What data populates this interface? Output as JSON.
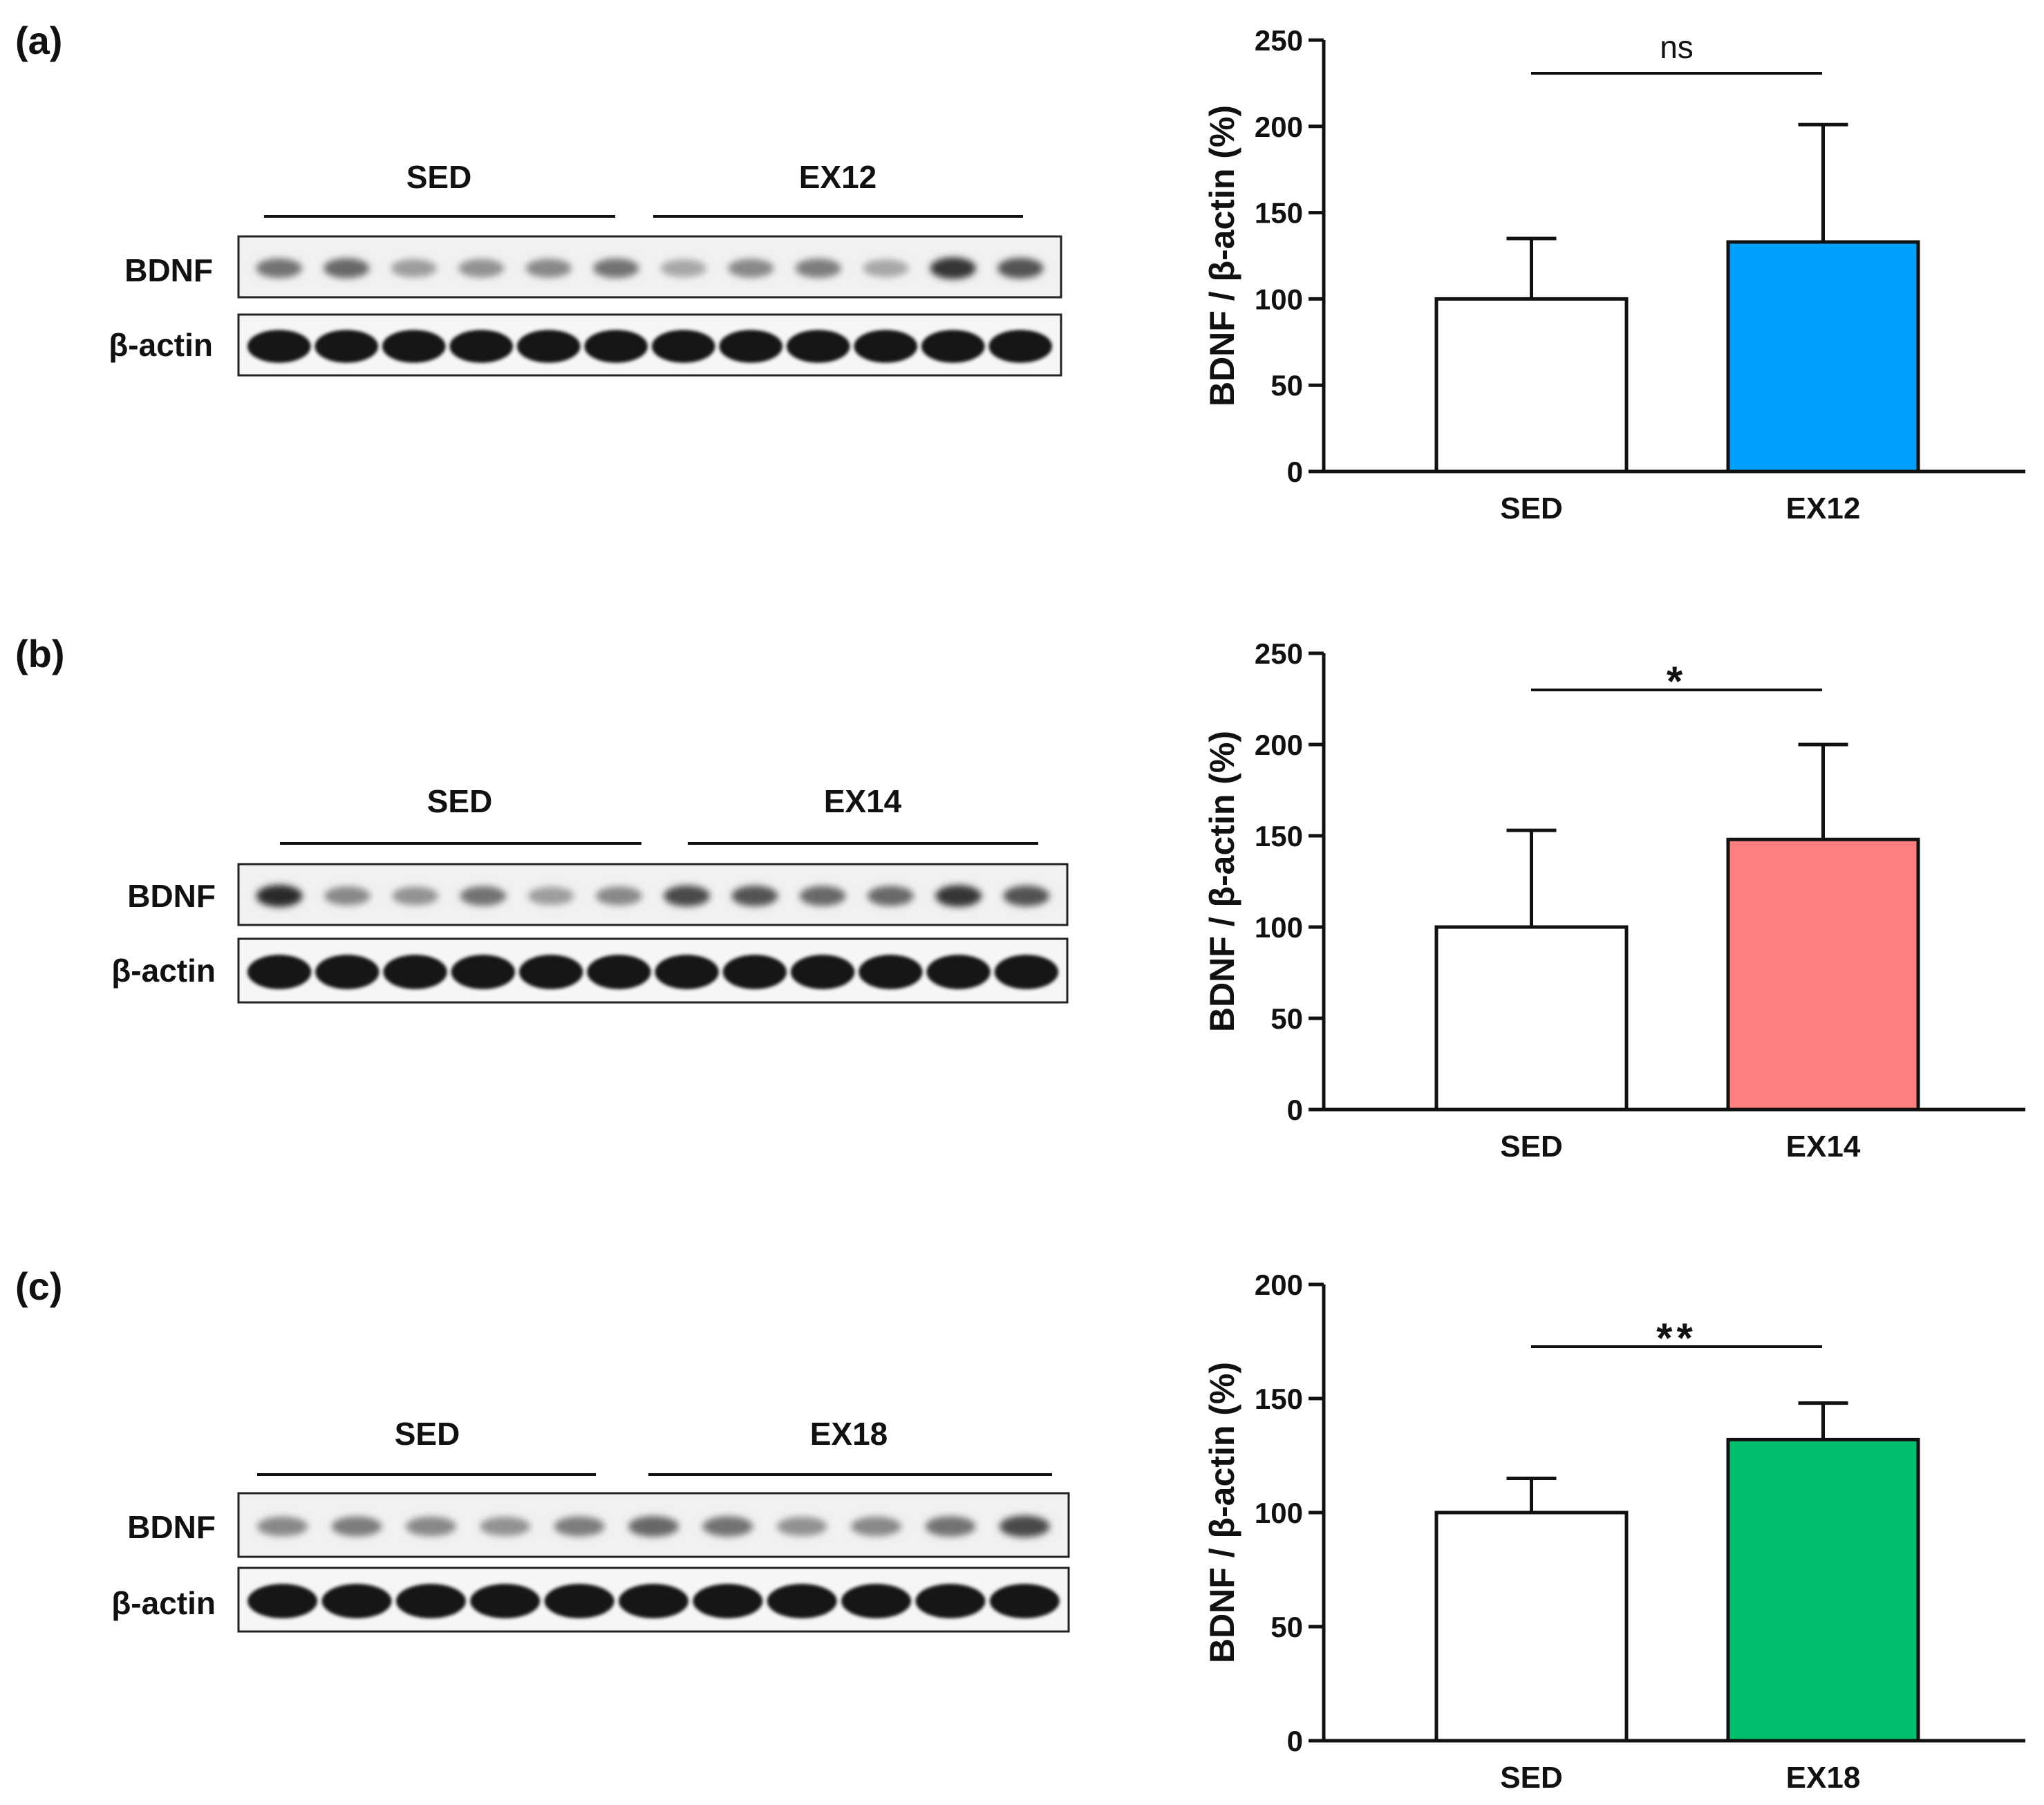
{
  "figure": {
    "panels": [
      {
        "label": "(a)",
        "blot": {
          "groups": [
            "SED",
            "EX12"
          ],
          "rows": [
            {
              "label": "BDNF",
              "lane_intensities": [
                0.55,
                0.6,
                0.35,
                0.4,
                0.45,
                0.55,
                0.3,
                0.45,
                0.5,
                0.3,
                0.85,
                0.7
              ]
            },
            {
              "label": "β-actin",
              "lane_intensities": [
                1,
                1,
                1,
                1,
                1,
                1,
                1,
                1,
                1,
                1,
                1,
                1
              ]
            }
          ]
        }
      },
      {
        "label": "(b)",
        "blot": {
          "groups": [
            "SED",
            "EX14"
          ],
          "rows": [
            {
              "label": "BDNF",
              "lane_intensities": [
                0.9,
                0.45,
                0.4,
                0.55,
                0.35,
                0.45,
                0.75,
                0.7,
                0.6,
                0.6,
                0.85,
                0.7
              ]
            },
            {
              "label": "β-actin",
              "lane_intensities": [
                1,
                1,
                1,
                1,
                1,
                1,
                1,
                1,
                1,
                1,
                1,
                1
              ]
            }
          ]
        }
      },
      {
        "label": "(c)",
        "blot": {
          "groups": [
            "SED",
            "EX18"
          ],
          "rows": [
            {
              "label": "BDNF",
              "lane_intensities": [
                0.45,
                0.5,
                0.45,
                0.4,
                0.5,
                0.6,
                0.55,
                0.4,
                0.45,
                0.55,
                0.75
              ]
            },
            {
              "label": "β-actin",
              "lane_intensities": [
                1,
                1,
                1,
                1,
                1,
                1,
                1,
                1,
                1,
                1,
                1
              ]
            }
          ]
        }
      }
    ]
  },
  "chart_data": [
    {
      "type": "bar",
      "panel": "(a)",
      "categories": [
        "SED",
        "EX12"
      ],
      "values": [
        100,
        133
      ],
      "errors": [
        35,
        68
      ],
      "colors": [
        "#ffffff",
        "#00a0ff"
      ],
      "ylabel": "BDNF / β-actin (%)",
      "ylim": [
        0,
        250
      ],
      "yticks": [
        0,
        50,
        100,
        150,
        200,
        250
      ],
      "significance": "ns"
    },
    {
      "type": "bar",
      "panel": "(b)",
      "categories": [
        "SED",
        "EX14"
      ],
      "values": [
        100,
        148
      ],
      "errors": [
        53,
        52
      ],
      "colors": [
        "#ffffff",
        "#ff7f7f"
      ],
      "ylabel": "BDNF / β-actin (%)",
      "ylim": [
        0,
        250
      ],
      "yticks": [
        0,
        50,
        100,
        150,
        200,
        250
      ],
      "significance": "*"
    },
    {
      "type": "bar",
      "panel": "(c)",
      "categories": [
        "SED",
        "EX18"
      ],
      "values": [
        100,
        132
      ],
      "errors": [
        15,
        16
      ],
      "colors": [
        "#ffffff",
        "#00bf6f"
      ],
      "ylabel": "BDNF / β-actin (%)",
      "ylim": [
        0,
        200
      ],
      "yticks": [
        0,
        50,
        100,
        150,
        200
      ],
      "significance": "**"
    }
  ]
}
